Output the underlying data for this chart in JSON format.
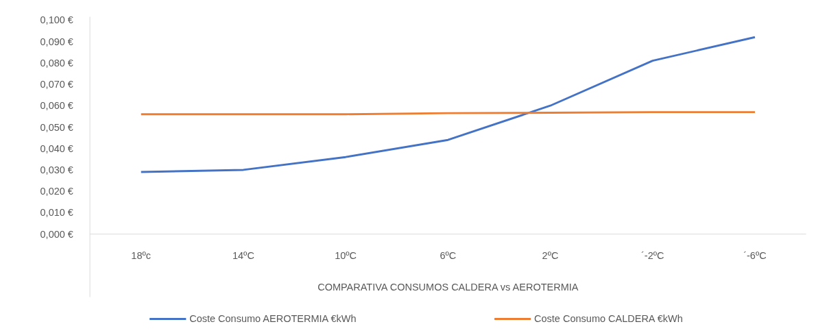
{
  "chart_data": {
    "type": "line",
    "xlabel": "COMPARATIVA CONSUMOS CALDERA vs AEROTERMIA",
    "categories": [
      "18ºc",
      "14ºC",
      "10ºC",
      "6ºC",
      "2ºC",
      "´-2ºC",
      "´-6ºC"
    ],
    "series": [
      {
        "name": "Coste Consumo AEROTERMIA €kWh",
        "color": "#4472c4",
        "values": [
          0.029,
          0.03,
          0.036,
          0.044,
          0.06,
          0.081,
          0.092
        ]
      },
      {
        "name": "Coste Consumo CALDERA €kWh",
        "color": "#ed7d31",
        "values": [
          0.056,
          0.056,
          0.056,
          0.0565,
          0.0567,
          0.057,
          0.057
        ]
      }
    ],
    "ylim": [
      0,
      0.1
    ],
    "yticks": [
      {
        "value": 0,
        "label": "0,000 €"
      },
      {
        "value": 0.01,
        "label": "0,010 €"
      },
      {
        "value": 0.02,
        "label": "0,020 €"
      },
      {
        "value": 0.03,
        "label": "0,030 €"
      },
      {
        "value": 0.04,
        "label": "0,040 €"
      },
      {
        "value": 0.05,
        "label": "0,050 €"
      },
      {
        "value": 0.06,
        "label": "0,060 €"
      },
      {
        "value": 0.07,
        "label": "0,070 €"
      },
      {
        "value": 0.08,
        "label": "0,080 €"
      },
      {
        "value": 0.09,
        "label": "0,090 €"
      },
      {
        "value": 0.1,
        "label": "0,100 €"
      }
    ],
    "grid": false,
    "legend": "bottom",
    "marker": "none",
    "line_style": "solid"
  }
}
